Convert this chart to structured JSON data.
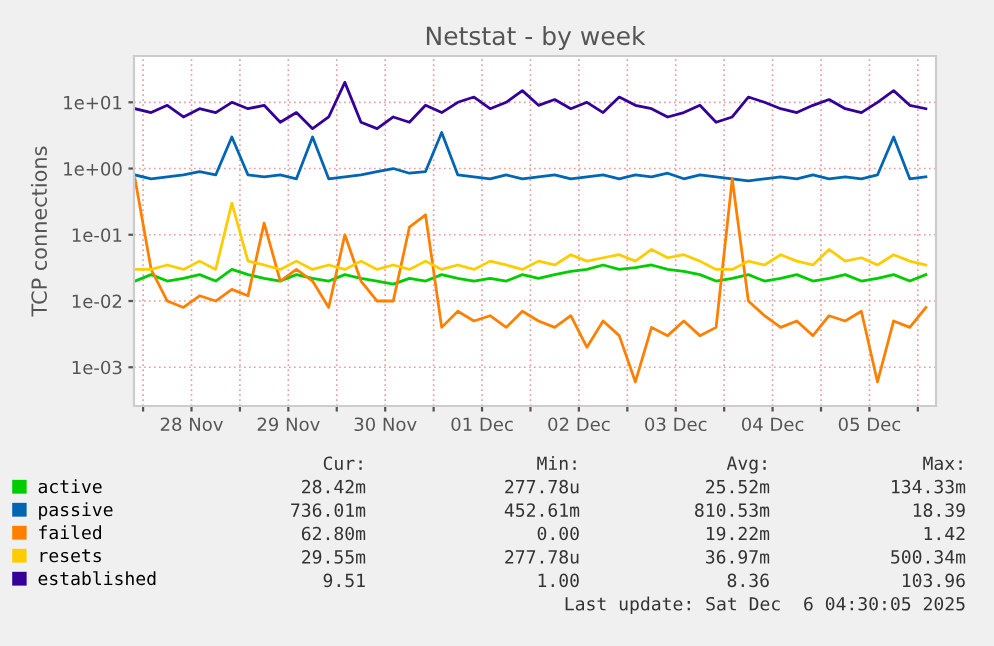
{
  "chart_data": {
    "type": "line",
    "title": "Netstat - by week",
    "ylabel": "TCP connections",
    "log": "y",
    "grid": true,
    "legend": "bottom",
    "marker": "none",
    "line_style": "solid",
    "ylim": [
      0.00026,
      50
    ],
    "yticks": [
      {
        "value": 0.001,
        "label": "1e-03"
      },
      {
        "value": 0.01,
        "label": "1e-02"
      },
      {
        "value": 0.1,
        "label": "1e-01"
      },
      {
        "value": 1,
        "label": "1e+00"
      },
      {
        "value": 10,
        "label": "1e+01"
      }
    ],
    "xlim": [
      "2025-11-27T21:45",
      "2025-12-06T04:30"
    ],
    "xticks": [
      {
        "value": "2025-11-28T00:00",
        "label": null
      },
      {
        "value": "2025-11-28T12:00",
        "label": "28 Nov"
      },
      {
        "value": "2025-11-29T00:00",
        "label": null
      },
      {
        "value": "2025-11-29T12:00",
        "label": "29 Nov"
      },
      {
        "value": "2025-11-30T00:00",
        "label": null
      },
      {
        "value": "2025-11-30T12:00",
        "label": "30 Nov"
      },
      {
        "value": "2025-12-01T00:00",
        "label": null
      },
      {
        "value": "2025-12-01T12:00",
        "label": "01 Dec"
      },
      {
        "value": "2025-12-02T00:00",
        "label": null
      },
      {
        "value": "2025-12-02T12:00",
        "label": "02 Dec"
      },
      {
        "value": "2025-12-03T00:00",
        "label": null
      },
      {
        "value": "2025-12-03T12:00",
        "label": "03 Dec"
      },
      {
        "value": "2025-12-04T00:00",
        "label": null
      },
      {
        "value": "2025-12-04T12:00",
        "label": "04 Dec"
      },
      {
        "value": "2025-12-05T00:00",
        "label": null
      },
      {
        "value": "2025-12-05T12:00",
        "label": "05 Dec"
      },
      {
        "value": "2025-12-06T00:00",
        "label": null
      }
    ],
    "x": [
      "2025-11-27T22:00",
      "2025-11-28T02:00",
      "2025-11-28T06:00",
      "2025-11-28T10:00",
      "2025-11-28T14:00",
      "2025-11-28T18:00",
      "2025-11-28T22:00",
      "2025-11-29T02:00",
      "2025-11-29T06:00",
      "2025-11-29T10:00",
      "2025-11-29T14:00",
      "2025-11-29T18:00",
      "2025-11-29T22:00",
      "2025-11-30T02:00",
      "2025-11-30T06:00",
      "2025-11-30T10:00",
      "2025-11-30T14:00",
      "2025-11-30T18:00",
      "2025-11-30T22:00",
      "2025-12-01T02:00",
      "2025-12-01T06:00",
      "2025-12-01T10:00",
      "2025-12-01T14:00",
      "2025-12-01T18:00",
      "2025-12-01T22:00",
      "2025-12-02T02:00",
      "2025-12-02T06:00",
      "2025-12-02T10:00",
      "2025-12-02T14:00",
      "2025-12-02T18:00",
      "2025-12-02T22:00",
      "2025-12-03T02:00",
      "2025-12-03T06:00",
      "2025-12-03T10:00",
      "2025-12-03T14:00",
      "2025-12-03T18:00",
      "2025-12-03T22:00",
      "2025-12-04T02:00",
      "2025-12-04T06:00",
      "2025-12-04T10:00",
      "2025-12-04T14:00",
      "2025-12-04T18:00",
      "2025-12-04T22:00",
      "2025-12-05T02:00",
      "2025-12-05T06:00",
      "2025-12-05T10:00",
      "2025-12-05T14:00",
      "2025-12-05T18:00",
      "2025-12-05T22:00",
      "2025-12-06T02:00"
    ],
    "series": [
      {
        "name": "active",
        "color": "#00cc00",
        "values": [
          0.02,
          0.025,
          0.02,
          0.022,
          0.025,
          0.02,
          0.03,
          0.025,
          0.022,
          0.02,
          0.025,
          0.022,
          0.02,
          0.025,
          0.022,
          0.02,
          0.018,
          0.022,
          0.02,
          0.025,
          0.022,
          0.02,
          0.022,
          0.02,
          0.025,
          0.022,
          0.025,
          0.028,
          0.03,
          0.035,
          0.03,
          0.032,
          0.035,
          0.03,
          0.028,
          0.025,
          0.02,
          0.022,
          0.025,
          0.02,
          0.022,
          0.025,
          0.02,
          0.022,
          0.025,
          0.02,
          0.022,
          0.025,
          0.02,
          0.025
        ]
      },
      {
        "name": "passive",
        "color": "#0066b3",
        "values": [
          0.8,
          0.7,
          0.75,
          0.8,
          0.9,
          0.8,
          3.0,
          0.8,
          0.75,
          0.8,
          0.7,
          3.0,
          0.7,
          0.75,
          0.8,
          0.9,
          1.0,
          0.85,
          0.9,
          3.5,
          0.8,
          0.75,
          0.7,
          0.8,
          0.7,
          0.75,
          0.8,
          0.7,
          0.75,
          0.8,
          0.7,
          0.8,
          0.75,
          0.85,
          0.7,
          0.8,
          0.75,
          0.7,
          0.65,
          0.7,
          0.75,
          0.7,
          0.8,
          0.7,
          0.75,
          0.7,
          0.8,
          3.0,
          0.7,
          0.75
        ]
      },
      {
        "name": "failed",
        "color": "#ff8000",
        "values": [
          0.7,
          0.03,
          0.01,
          0.008,
          0.012,
          0.01,
          0.015,
          0.012,
          0.15,
          0.02,
          0.03,
          0.02,
          0.008,
          0.1,
          0.02,
          0.01,
          0.01,
          0.13,
          0.2,
          0.004,
          0.007,
          0.005,
          0.006,
          0.004,
          0.007,
          0.005,
          0.004,
          0.006,
          0.002,
          0.005,
          0.003,
          0.0006,
          0.004,
          0.003,
          0.005,
          0.003,
          0.004,
          0.7,
          0.01,
          0.006,
          0.004,
          0.005,
          0.003,
          0.006,
          0.005,
          0.007,
          0.0006,
          0.005,
          0.004,
          0.008
        ]
      },
      {
        "name": "resets",
        "color": "#ffcc00",
        "values": [
          0.03,
          0.03,
          0.035,
          0.03,
          0.04,
          0.03,
          0.3,
          0.04,
          0.035,
          0.03,
          0.04,
          0.03,
          0.035,
          0.03,
          0.04,
          0.03,
          0.035,
          0.03,
          0.04,
          0.03,
          0.035,
          0.03,
          0.04,
          0.035,
          0.03,
          0.04,
          0.035,
          0.05,
          0.04,
          0.045,
          0.05,
          0.04,
          0.06,
          0.045,
          0.05,
          0.04,
          0.03,
          0.03,
          0.04,
          0.035,
          0.05,
          0.04,
          0.035,
          0.06,
          0.04,
          0.045,
          0.035,
          0.05,
          0.04,
          0.035
        ]
      },
      {
        "name": "established",
        "color": "#330099",
        "values": [
          8,
          7,
          9,
          6,
          8,
          7,
          10,
          8,
          9,
          5,
          7,
          4,
          6,
          20,
          5,
          4,
          6,
          5,
          9,
          7,
          10,
          12,
          8,
          10,
          15,
          9,
          11,
          8,
          10,
          7,
          12,
          9,
          8,
          6,
          7,
          9,
          5,
          6,
          12,
          10,
          8,
          7,
          9,
          11,
          8,
          7,
          10,
          15,
          9,
          8
        ]
      }
    ],
    "annotations": [
      "Cur:",
      "Min:",
      "Avg:",
      "Max:",
      "28.42m",
      "277.78u",
      "25.52m",
      "134.33m",
      "736.01m",
      "452.61m",
      "810.53m",
      "18.39",
      "62.80m",
      "0.00",
      "19.22m",
      "1.42",
      "29.55m",
      "277.78u",
      "36.97m",
      "500.34m",
      "9.51",
      "1.00",
      "8.36",
      "103.96",
      "Last update: Sat Dec  6 04:30:05 2025"
    ]
  }
}
